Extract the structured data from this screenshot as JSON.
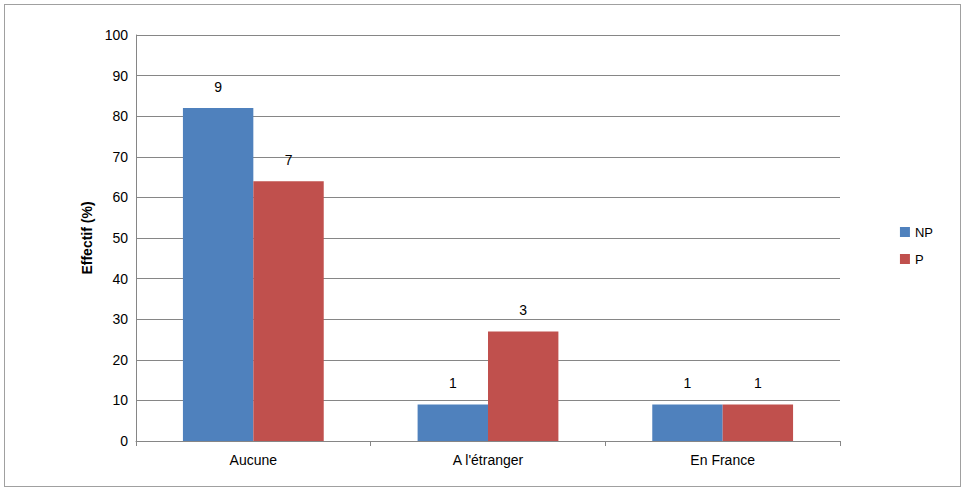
{
  "chart_data": {
    "type": "bar",
    "y_label": "Effectif (%)",
    "categories": [
      "Aucune",
      "A l'étranger",
      "En France"
    ],
    "series": [
      {
        "name": "NP",
        "color": "#4f81bd",
        "values": [
          82,
          9,
          9
        ],
        "counts": [
          9,
          1,
          1
        ]
      },
      {
        "name": "P",
        "color": "#c0504d",
        "values": [
          64,
          27,
          9
        ],
        "counts": [
          7,
          3,
          1
        ]
      }
    ],
    "ylim": [
      0,
      100
    ],
    "yticks": [
      0,
      10,
      20,
      30,
      40,
      50,
      60,
      70,
      80,
      90,
      100
    ],
    "grid": true,
    "legend": "right"
  }
}
